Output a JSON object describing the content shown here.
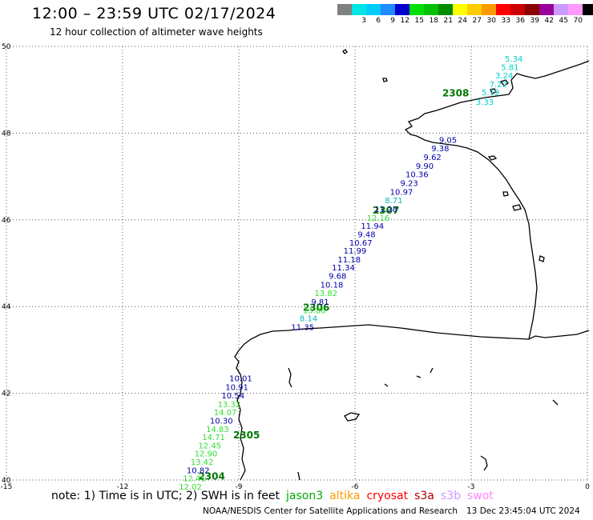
{
  "header": {
    "title": "12:00 – 23:59 UTC 02/17/2024",
    "subtitle": "12 hour collection of altimeter wave heights"
  },
  "legend": {
    "unit": "(ft)",
    "items": [
      {
        "label": "",
        "color": "#808080"
      },
      {
        "label": "3",
        "color": "#00e5e5"
      },
      {
        "label": "6",
        "color": "#00ccff"
      },
      {
        "label": "9",
        "color": "#1e8cff"
      },
      {
        "label": "12",
        "color": "#0000cc"
      },
      {
        "label": "15",
        "color": "#00e000"
      },
      {
        "label": "18",
        "color": "#00c000"
      },
      {
        "label": "21",
        "color": "#008c00"
      },
      {
        "label": "24",
        "color": "#ffff00"
      },
      {
        "label": "27",
        "color": "#ffcc00"
      },
      {
        "label": "30",
        "color": "#ff9900"
      },
      {
        "label": "33",
        "color": "#ff0000"
      },
      {
        "label": "36",
        "color": "#cc0000"
      },
      {
        "label": "39",
        "color": "#8b0000"
      },
      {
        "label": "42",
        "color": "#990099"
      },
      {
        "label": "45",
        "color": "#cc99ff"
      },
      {
        "label": "70",
        "color": "#ff99ff"
      },
      {
        "label": "",
        "color": "#000000"
      }
    ]
  },
  "axes": {
    "lon_ticks": [
      "-15",
      "-12",
      "-9",
      "-6",
      "-3",
      "0"
    ],
    "lat_ticks": [
      "50",
      "48",
      "46",
      "44",
      "42",
      "40"
    ],
    "lon_range": [
      -15,
      0
    ],
    "lat_range": [
      40,
      50
    ]
  },
  "footer": {
    "note": "note: 1) Time is in UTC; 2) SWH is in feet",
    "satellites": [
      {
        "name": "jason3",
        "color": "#00aa00"
      },
      {
        "name": "altika",
        "color": "#ff9900"
      },
      {
        "name": "cryosat",
        "color": "#ff0000"
      },
      {
        "name": "s3a",
        "color": "#aa0000"
      },
      {
        "name": "s3b",
        "color": "#cc99ff"
      },
      {
        "name": "swot",
        "color": "#ff88ff"
      }
    ],
    "credit": "NOAA/NESDIS Center for Satellite Applications and Research",
    "stamp": "13 Dec 23:45:04 UTC 2024"
  },
  "chart_data": {
    "type": "scatter",
    "map_extent": {
      "lon": [
        -15,
        0
      ],
      "lat": [
        40,
        50
      ]
    },
    "time_labels": [
      {
        "text": "2308",
        "lon": -3.4,
        "lat": 48.85,
        "color": "#007700"
      },
      {
        "text": "2307",
        "lon": -5.2,
        "lat": 46.14,
        "color": "#007700"
      },
      {
        "text": "2306",
        "lon": -7.0,
        "lat": 43.9,
        "color": "#007700"
      },
      {
        "text": "2305",
        "lon": -8.8,
        "lat": 40.96,
        "color": "#007700"
      },
      {
        "text": "2304",
        "lon": -9.7,
        "lat": 40.01,
        "color": "#007700"
      }
    ],
    "wave_heights": [
      {
        "text": "5.34",
        "lon": -1.9,
        "lat": 49.65,
        "color": "#00d0d0"
      },
      {
        "text": "5.81",
        "lon": -2.0,
        "lat": 49.46,
        "color": "#00d0d0"
      },
      {
        "text": "3.24",
        "lon": -2.15,
        "lat": 49.26,
        "color": "#00d0d0"
      },
      {
        "text": "7.22",
        "lon": -2.3,
        "lat": 49.06,
        "color": "#00d0d0"
      },
      {
        "text": "5.19",
        "lon": -2.5,
        "lat": 48.87,
        "color": "#00d0d0"
      },
      {
        "text": "3.33",
        "lon": -2.65,
        "lat": 48.65,
        "color": "#00d0d0"
      },
      {
        "text": "9.05",
        "lon": -3.6,
        "lat": 47.78,
        "color": "#0000aa"
      },
      {
        "text": "9.38",
        "lon": -3.8,
        "lat": 47.58,
        "color": "#0000aa"
      },
      {
        "text": "9.62",
        "lon": -4.0,
        "lat": 47.38,
        "color": "#0000aa"
      },
      {
        "text": "9.90",
        "lon": -4.2,
        "lat": 47.18,
        "color": "#0000aa"
      },
      {
        "text": "10.36",
        "lon": -4.4,
        "lat": 46.98,
        "color": "#0000aa"
      },
      {
        "text": "9.23",
        "lon": -4.6,
        "lat": 46.78,
        "color": "#0000aa"
      },
      {
        "text": "10.97",
        "lon": -4.8,
        "lat": 46.58,
        "color": "#0000aa"
      },
      {
        "text": "8.71",
        "lon": -5.0,
        "lat": 46.38,
        "color": "#00bbbb"
      },
      {
        "text": "11.28",
        "lon": -5.2,
        "lat": 46.18,
        "color": "#0000aa"
      },
      {
        "text": "12.16",
        "lon": -5.4,
        "lat": 45.98,
        "color": "#33dd33"
      },
      {
        "text": "11.94",
        "lon": -5.55,
        "lat": 45.79,
        "color": "#0000aa"
      },
      {
        "text": "9.48",
        "lon": -5.7,
        "lat": 45.6,
        "color": "#0000aa"
      },
      {
        "text": "10.67",
        "lon": -5.85,
        "lat": 45.41,
        "color": "#0000aa"
      },
      {
        "text": "11.99",
        "lon": -6.0,
        "lat": 45.22,
        "color": "#0000aa"
      },
      {
        "text": "11.18",
        "lon": -6.15,
        "lat": 45.02,
        "color": "#0000aa"
      },
      {
        "text": "11.34",
        "lon": -6.3,
        "lat": 44.83,
        "color": "#0000aa"
      },
      {
        "text": "9.68",
        "lon": -6.45,
        "lat": 44.64,
        "color": "#0000aa"
      },
      {
        "text": "10.18",
        "lon": -6.6,
        "lat": 44.44,
        "color": "#0000aa"
      },
      {
        "text": "13.82",
        "lon": -6.75,
        "lat": 44.24,
        "color": "#33dd33"
      },
      {
        "text": "9.81",
        "lon": -6.9,
        "lat": 44.04,
        "color": "#0000aa"
      },
      {
        "text": "13.86",
        "lon": -7.05,
        "lat": 43.85,
        "color": "#33dd33"
      },
      {
        "text": "8.14",
        "lon": -7.2,
        "lat": 43.66,
        "color": "#00bbbb"
      },
      {
        "text": "11.35",
        "lon": -7.35,
        "lat": 43.46,
        "color": "#0000aa"
      },
      {
        "text": "10.01",
        "lon": -8.95,
        "lat": 42.28,
        "color": "#0000aa"
      },
      {
        "text": "10.91",
        "lon": -9.05,
        "lat": 42.08,
        "color": "#0000aa"
      },
      {
        "text": "10.54",
        "lon": -9.15,
        "lat": 41.88,
        "color": "#0000aa"
      },
      {
        "text": "13.32",
        "lon": -9.25,
        "lat": 41.68,
        "color": "#33dd33"
      },
      {
        "text": "14.07",
        "lon": -9.35,
        "lat": 41.49,
        "color": "#33dd33"
      },
      {
        "text": "10.30",
        "lon": -9.45,
        "lat": 41.3,
        "color": "#0000aa"
      },
      {
        "text": "14.83",
        "lon": -9.55,
        "lat": 41.11,
        "color": "#33dd33"
      },
      {
        "text": "14.71",
        "lon": -9.65,
        "lat": 40.92,
        "color": "#33dd33"
      },
      {
        "text": "12.45",
        "lon": -9.75,
        "lat": 40.73,
        "color": "#33dd33"
      },
      {
        "text": "12.90",
        "lon": -9.85,
        "lat": 40.54,
        "color": "#33dd33"
      },
      {
        "text": "13.42",
        "lon": -9.95,
        "lat": 40.35,
        "color": "#33dd33"
      },
      {
        "text": "10.82",
        "lon": -10.05,
        "lat": 40.16,
        "color": "#0000aa"
      },
      {
        "text": "12.41",
        "lon": -10.15,
        "lat": 39.97,
        "color": "#33dd33"
      },
      {
        "text": "12.02",
        "lon": -10.25,
        "lat": 39.78,
        "color": "#33dd33"
      }
    ]
  }
}
